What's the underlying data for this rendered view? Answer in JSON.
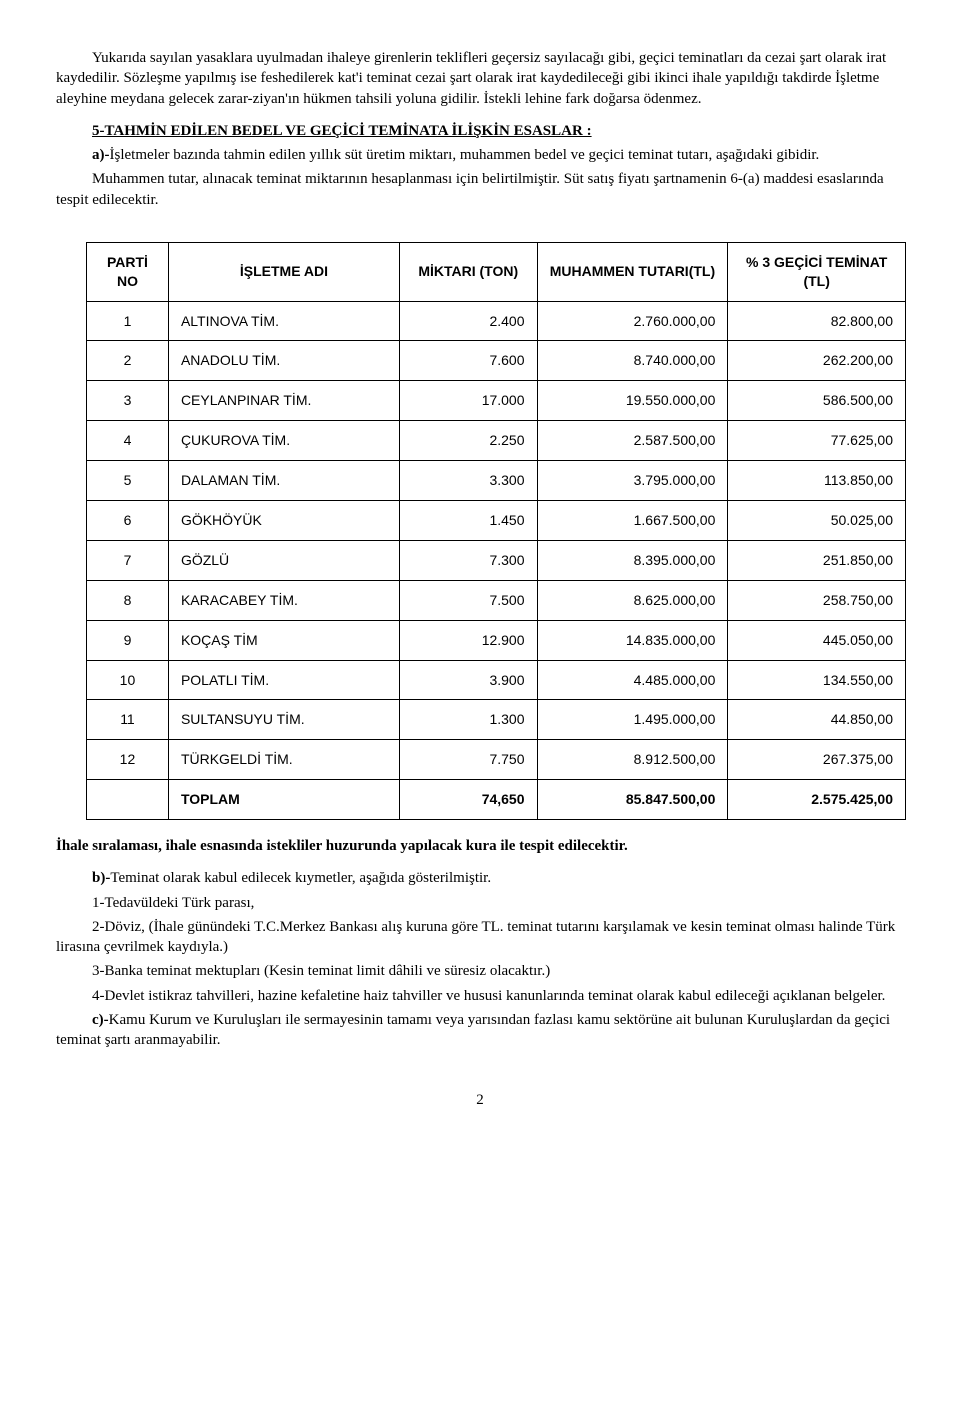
{
  "intro": {
    "p1": "Yukarıda sayılan yasaklara uyulmadan ihaleye girenlerin teklifleri geçersiz sayılacağı gibi, geçici teminatları da cezai şart olarak irat kaydedilir. Sözleşme yapılmış ise feshedilerek kat'i teminat cezai şart olarak irat kaydedileceği gibi ikinci ihale yapıldığı takdirde İşletme aleyhine meydana gelecek zarar-ziyan'ın hükmen tahsili yoluna gidilir. İstekli lehine fark doğarsa ödenmez."
  },
  "section5": {
    "title": "5-TAHMİN EDİLEN BEDEL VE GEÇİCİ TEMİNATA İLİŞKİN ESASLAR :",
    "a_bold": "a)-",
    "a_text": "İşletmeler bazında tahmin edilen yıllık süt üretim miktarı, muhammen bedel ve geçici teminat tutarı, aşağıdaki gibidir.",
    "p2": "Muhammen tutar, alınacak teminat miktarının hesaplanması için belirtilmiştir. Süt satış fiyatı şartnamenin 6-(a) maddesi esaslarında tespit edilecektir."
  },
  "table": {
    "headers": {
      "no": "PARTİ NO",
      "name": "İŞLETME ADI",
      "mik": "MİKTARI (TON)",
      "muh": "MUHAMMEN TUTARI(TL)",
      "tem": "% 3 GEÇİCİ TEMİNAT (TL)"
    },
    "rows": [
      {
        "no": "1",
        "name": "ALTINOVA TİM.",
        "mik": "2.400",
        "muh": "2.760.000,00",
        "tem": "82.800,00"
      },
      {
        "no": "2",
        "name": "ANADOLU TİM.",
        "mik": "7.600",
        "muh": "8.740.000,00",
        "tem": "262.200,00"
      },
      {
        "no": "3",
        "name": "CEYLANPINAR TİM.",
        "mik": "17.000",
        "muh": "19.550.000,00",
        "tem": "586.500,00"
      },
      {
        "no": "4",
        "name": "ÇUKUROVA TİM.",
        "mik": "2.250",
        "muh": "2.587.500,00",
        "tem": "77.625,00"
      },
      {
        "no": "5",
        "name": "DALAMAN TİM.",
        "mik": "3.300",
        "muh": "3.795.000,00",
        "tem": "113.850,00"
      },
      {
        "no": "6",
        "name": "GÖKHÖYÜK",
        "mik": "1.450",
        "muh": "1.667.500,00",
        "tem": "50.025,00"
      },
      {
        "no": "7",
        "name": "GÖZLÜ",
        "mik": "7.300",
        "muh": "8.395.000,00",
        "tem": "251.850,00"
      },
      {
        "no": "8",
        "name": "KARACABEY TİM.",
        "mik": "7.500",
        "muh": "8.625.000,00",
        "tem": "258.750,00"
      },
      {
        "no": "9",
        "name": "KOÇAŞ TİM",
        "mik": "12.900",
        "muh": "14.835.000,00",
        "tem": "445.050,00"
      },
      {
        "no": "10",
        "name": "POLATLI TİM.",
        "mik": "3.900",
        "muh": "4.485.000,00",
        "tem": "134.550,00"
      },
      {
        "no": "11",
        "name": "SULTANSUYU TİM.",
        "mik": "1.300",
        "muh": "1.495.000,00",
        "tem": "44.850,00"
      },
      {
        "no": "12",
        "name": "TÜRKGELDİ TİM.",
        "mik": "7.750",
        "muh": "8.912.500,00",
        "tem": "267.375,00"
      }
    ],
    "total": {
      "label": "TOPLAM",
      "mik": "74,650",
      "muh": "85.847.500,00",
      "tem": "2.575.425,00"
    }
  },
  "after_table": {
    "bold_line": "İhale sıralaması, ihale esnasında istekliler huzurunda yapılacak kura ile tespit edilecektir.",
    "b_bold": "b)-",
    "b_text": "Teminat olarak kabul edilecek kıymetler, aşağıda gösterilmiştir.",
    "l1": "1-Tedavüldeki Türk parası,",
    "l2": "2-Döviz, (İhale günündeki T.C.Merkez Bankası alış kuruna göre TL. teminat tutarını karşılamak ve kesin teminat olması halinde Türk lirasına çevrilmek kaydıyla.)",
    "l3": "3-Banka teminat mektupları (Kesin teminat limit dâhili ve süresiz olacaktır.)",
    "l4": "4-Devlet istikraz tahvilleri, hazine kefaletine haiz tahviller ve hususi kanunlarında teminat olarak kabul edileceği açıklanan belgeler.",
    "c_bold": "c)-",
    "c_text": "Kamu Kurum ve Kuruluşları ile sermayesinin tamamı veya yarısından fazlası kamu sektörüne ait bulunan Kuruluşlardan da geçici teminat şartı aranmayabilir."
  },
  "page_number": "2"
}
